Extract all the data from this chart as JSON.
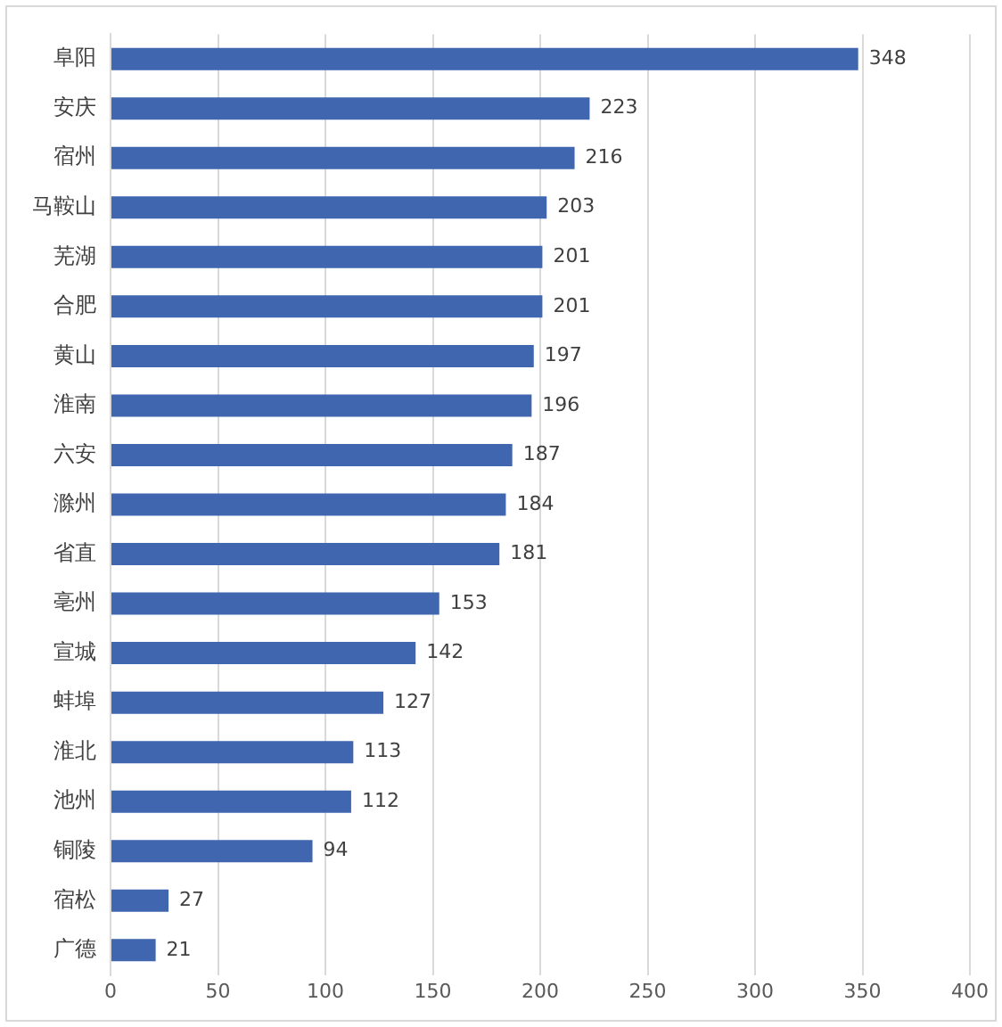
{
  "chart_data": {
    "type": "bar",
    "orientation": "horizontal",
    "categories": [
      "阜阳",
      "安庆",
      "宿州",
      "马鞍山",
      "芜湖",
      "合肥",
      "黄山",
      "淮南",
      "六安",
      "滁州",
      "省直",
      "亳州",
      "宣城",
      "蚌埠",
      "淮北",
      "池州",
      "铜陵",
      "宿松",
      "广德"
    ],
    "values": [
      348,
      223,
      216,
      203,
      201,
      201,
      197,
      196,
      187,
      184,
      181,
      153,
      142,
      127,
      113,
      112,
      94,
      27,
      21
    ],
    "color": "#4066b0",
    "xlim": [
      0,
      400
    ],
    "xticks": [
      0,
      50,
      100,
      150,
      200,
      250,
      300,
      350,
      400
    ],
    "grid": "x",
    "legend": false,
    "data_labels": true
  }
}
